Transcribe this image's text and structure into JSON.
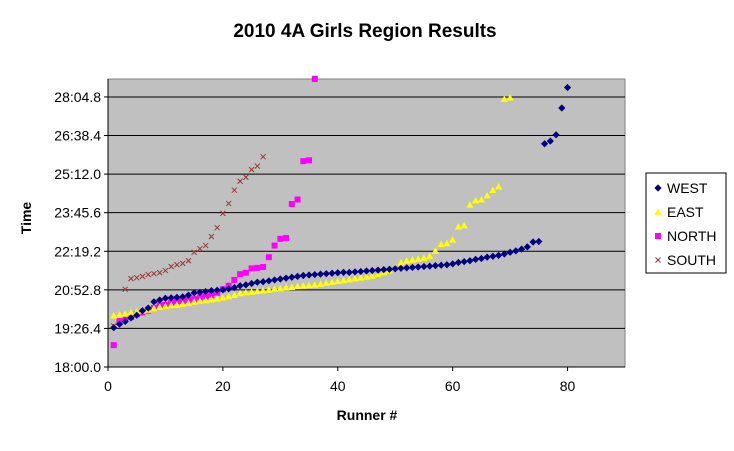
{
  "chart_data": {
    "type": "scatter",
    "title": "2010 4A Girls Region Results",
    "xlabel": "Runner #",
    "ylabel": "Time",
    "xlim": [
      0,
      90
    ],
    "xticks": [
      0,
      20,
      40,
      60,
      80
    ],
    "ylim": [
      1080,
      1725
    ],
    "yticks": [
      1080,
      1166.4,
      1252.8,
      1339.2,
      1425.6,
      1512,
      1598.4,
      1684.8
    ],
    "ytick_labels": [
      "18:00.0",
      "19:26.4",
      "20:52.8",
      "22:19.2",
      "23:45.6",
      "25:12.0",
      "26:38.4",
      "28:04.8"
    ],
    "y_unit": "seconds",
    "grid": "horizontal",
    "plot_background": "#c0c0c0",
    "legend_position": "right",
    "series": [
      {
        "name": "WEST",
        "marker": "diamond",
        "color": "#000080",
        "points": [
          [
            1,
            1168
          ],
          [
            2,
            1176
          ],
          [
            3,
            1182
          ],
          [
            4,
            1190
          ],
          [
            5,
            1196
          ],
          [
            6,
            1206
          ],
          [
            7,
            1212
          ],
          [
            8,
            1226
          ],
          [
            9,
            1230
          ],
          [
            10,
            1234
          ],
          [
            11,
            1235
          ],
          [
            12,
            1236
          ],
          [
            13,
            1237
          ],
          [
            14,
            1241
          ],
          [
            15,
            1246
          ],
          [
            16,
            1247
          ],
          [
            17,
            1249
          ],
          [
            18,
            1251
          ],
          [
            19,
            1252
          ],
          [
            20,
            1253
          ],
          [
            21,
            1255
          ],
          [
            22,
            1258
          ],
          [
            23,
            1262
          ],
          [
            24,
            1264
          ],
          [
            25,
            1267
          ],
          [
            26,
            1270
          ],
          [
            27,
            1271
          ],
          [
            28,
            1273
          ],
          [
            29,
            1275
          ],
          [
            30,
            1277
          ],
          [
            31,
            1279
          ],
          [
            32,
            1281
          ],
          [
            33,
            1283
          ],
          [
            34,
            1285
          ],
          [
            35,
            1286
          ],
          [
            36,
            1287
          ],
          [
            37,
            1288
          ],
          [
            38,
            1289
          ],
          [
            39,
            1290
          ],
          [
            40,
            1291
          ],
          [
            41,
            1292
          ],
          [
            42,
            1292
          ],
          [
            43,
            1293
          ],
          [
            44,
            1294
          ],
          [
            45,
            1295
          ],
          [
            46,
            1296
          ],
          [
            47,
            1297
          ],
          [
            48,
            1298
          ],
          [
            49,
            1299
          ],
          [
            50,
            1300
          ],
          [
            51,
            1301
          ],
          [
            52,
            1302
          ],
          [
            53,
            1303
          ],
          [
            54,
            1304
          ],
          [
            55,
            1305
          ],
          [
            56,
            1306
          ],
          [
            57,
            1307
          ],
          [
            58,
            1308
          ],
          [
            59,
            1309
          ],
          [
            60,
            1311
          ],
          [
            61,
            1314
          ],
          [
            62,
            1316
          ],
          [
            63,
            1318
          ],
          [
            64,
            1321
          ],
          [
            65,
            1323
          ],
          [
            66,
            1326
          ],
          [
            67,
            1328
          ],
          [
            68,
            1330
          ],
          [
            69,
            1333
          ],
          [
            70,
            1337
          ],
          [
            71,
            1340
          ],
          [
            72,
            1344
          ],
          [
            73,
            1349
          ],
          [
            74,
            1360
          ],
          [
            75,
            1361
          ],
          [
            76,
            1580
          ],
          [
            77,
            1586
          ],
          [
            78,
            1600
          ],
          [
            79,
            1660
          ],
          [
            80,
            1706
          ]
        ]
      },
      {
        "name": "EAST",
        "marker": "triangle",
        "color": "#ffff00",
        "points": [
          [
            1,
            1195
          ],
          [
            2,
            1197
          ],
          [
            3,
            1199
          ],
          [
            4,
            1202
          ],
          [
            5,
            1204
          ],
          [
            6,
            1206
          ],
          [
            7,
            1208
          ],
          [
            8,
            1211
          ],
          [
            9,
            1214
          ],
          [
            10,
            1216
          ],
          [
            11,
            1218
          ],
          [
            12,
            1219
          ],
          [
            13,
            1221
          ],
          [
            14,
            1223
          ],
          [
            15,
            1226
          ],
          [
            16,
            1228
          ],
          [
            17,
            1229
          ],
          [
            18,
            1231
          ],
          [
            19,
            1233
          ],
          [
            20,
            1235
          ],
          [
            21,
            1238
          ],
          [
            22,
            1241
          ],
          [
            23,
            1245
          ],
          [
            24,
            1247
          ],
          [
            25,
            1248
          ],
          [
            26,
            1250
          ],
          [
            27,
            1251
          ],
          [
            28,
            1253
          ],
          [
            29,
            1255
          ],
          [
            30,
            1256
          ],
          [
            31,
            1258
          ],
          [
            32,
            1259
          ],
          [
            33,
            1261
          ],
          [
            34,
            1262
          ],
          [
            35,
            1263
          ],
          [
            36,
            1264
          ],
          [
            37,
            1266
          ],
          [
            38,
            1268
          ],
          [
            39,
            1270
          ],
          [
            40,
            1272
          ],
          [
            41,
            1274
          ],
          [
            42,
            1276
          ],
          [
            43,
            1278
          ],
          [
            44,
            1280
          ],
          [
            45,
            1282
          ],
          [
            46,
            1284
          ],
          [
            47,
            1288
          ],
          [
            48,
            1292
          ],
          [
            49,
            1296
          ],
          [
            50,
            1304
          ],
          [
            51,
            1314
          ],
          [
            52,
            1318
          ],
          [
            53,
            1320
          ],
          [
            54,
            1322
          ],
          [
            55,
            1324
          ],
          [
            56,
            1328
          ],
          [
            57,
            1340
          ],
          [
            58,
            1355
          ],
          [
            59,
            1357
          ],
          [
            60,
            1365
          ],
          [
            61,
            1394
          ],
          [
            62,
            1397
          ],
          [
            63,
            1443
          ],
          [
            64,
            1453
          ],
          [
            65,
            1455
          ],
          [
            66,
            1464
          ],
          [
            67,
            1476
          ],
          [
            68,
            1484
          ],
          [
            69,
            1680
          ],
          [
            70,
            1683
          ]
        ]
      },
      {
        "name": "NORTH",
        "marker": "square",
        "color": "#ff00ff",
        "points": [
          [
            1,
            1129
          ],
          [
            2,
            1183
          ],
          [
            3,
            1189
          ],
          [
            4,
            1192
          ],
          [
            5,
            1198
          ],
          [
            6,
            1202
          ],
          [
            7,
            1206
          ],
          [
            8,
            1212
          ],
          [
            9,
            1218
          ],
          [
            10,
            1219
          ],
          [
            11,
            1224
          ],
          [
            12,
            1227
          ],
          [
            13,
            1228
          ],
          [
            14,
            1230
          ],
          [
            15,
            1232
          ],
          [
            16,
            1236
          ],
          [
            17,
            1238
          ],
          [
            18,
            1241
          ],
          [
            19,
            1246
          ],
          [
            20,
            1254
          ],
          [
            21,
            1262
          ],
          [
            22,
            1275
          ],
          [
            23,
            1288
          ],
          [
            24,
            1291
          ],
          [
            25,
            1301
          ],
          [
            26,
            1302
          ],
          [
            27,
            1304
          ],
          [
            28,
            1326
          ],
          [
            29,
            1352
          ],
          [
            30,
            1367
          ],
          [
            31,
            1369
          ],
          [
            32,
            1445
          ],
          [
            33,
            1455
          ],
          [
            34,
            1541
          ],
          [
            35,
            1543
          ],
          [
            36,
            1725
          ]
        ]
      },
      {
        "name": "SOUTH",
        "marker": "x",
        "color": "#993333",
        "points": [
          [
            1,
            1172
          ],
          [
            2,
            1181
          ],
          [
            3,
            1254
          ],
          [
            4,
            1278
          ],
          [
            5,
            1280
          ],
          [
            6,
            1283
          ],
          [
            7,
            1287
          ],
          [
            8,
            1289
          ],
          [
            9,
            1291
          ],
          [
            10,
            1296
          ],
          [
            11,
            1305
          ],
          [
            12,
            1309
          ],
          [
            13,
            1312
          ],
          [
            14,
            1318
          ],
          [
            15,
            1337
          ],
          [
            16,
            1345
          ],
          [
            17,
            1352
          ],
          [
            18,
            1372
          ],
          [
            19,
            1392
          ],
          [
            20,
            1424
          ],
          [
            21,
            1446
          ],
          [
            22,
            1476
          ],
          [
            23,
            1496
          ],
          [
            24,
            1505
          ],
          [
            25,
            1522
          ],
          [
            26,
            1530
          ],
          [
            27,
            1551
          ]
        ]
      }
    ]
  }
}
